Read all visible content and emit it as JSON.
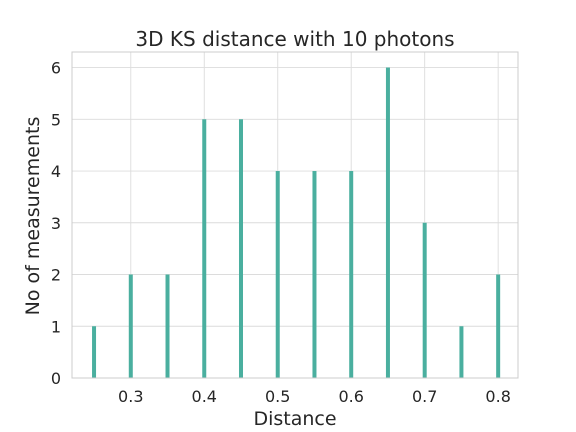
{
  "chart_data": {
    "type": "bar",
    "title": "3D KS distance with 10 photons",
    "xlabel": "Distance",
    "ylabel": "No of measurements",
    "x": [
      0.25,
      0.3,
      0.35,
      0.4,
      0.45,
      0.5,
      0.55,
      0.6,
      0.65,
      0.7,
      0.75,
      0.8
    ],
    "values": [
      1,
      2,
      2,
      5,
      5,
      4,
      4,
      4,
      6,
      3,
      1,
      2
    ],
    "xlim": [
      0.22,
      0.827
    ],
    "ylim": [
      0,
      6.3
    ],
    "xticks": [
      0.3,
      0.4,
      0.5,
      0.6,
      0.7,
      0.8
    ],
    "xtick_labels": [
      "0.3",
      "0.4",
      "0.5",
      "0.6",
      "0.7",
      "0.8"
    ],
    "yticks": [
      0,
      1,
      2,
      3,
      4,
      5,
      6
    ],
    "ytick_labels": [
      "0",
      "1",
      "2",
      "3",
      "4",
      "5",
      "6"
    ],
    "grid": true,
    "bar_color": "#4aaf9f"
  }
}
